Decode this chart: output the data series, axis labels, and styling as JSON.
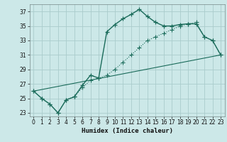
{
  "xlabel": "Humidex (Indice chaleur)",
  "ylabel": "",
  "bg_color": "#cce8e8",
  "grid_color": "#aacccc",
  "line_color": "#1a6b5a",
  "xlim": [
    -0.5,
    23.5
  ],
  "ylim": [
    22.5,
    38.0
  ],
  "xticks": [
    0,
    1,
    2,
    3,
    4,
    5,
    6,
    7,
    8,
    9,
    10,
    11,
    12,
    13,
    14,
    15,
    16,
    17,
    18,
    19,
    20,
    21,
    22,
    23
  ],
  "yticks": [
    23,
    25,
    27,
    29,
    31,
    33,
    35,
    37
  ],
  "line1_x": [
    0,
    1,
    2,
    3,
    4,
    5,
    6,
    7,
    8,
    9,
    10,
    11,
    12,
    13,
    14,
    15,
    16,
    17,
    18,
    19,
    20,
    21,
    22,
    23
  ],
  "line1_y": [
    26.0,
    25.0,
    24.2,
    23.0,
    24.8,
    25.2,
    26.8,
    28.2,
    27.8,
    34.2,
    35.2,
    36.0,
    36.6,
    37.3,
    36.3,
    35.5,
    35.0,
    35.0,
    35.2,
    35.3,
    35.3,
    33.5,
    33.0,
    31.0
  ],
  "line2_x": [
    0,
    1,
    2,
    3,
    4,
    5,
    6,
    7,
    8,
    9,
    10,
    11,
    12,
    13,
    14,
    15,
    16,
    17,
    18,
    19,
    20,
    21,
    22,
    23
  ],
  "line2_y": [
    26.0,
    25.0,
    24.2,
    23.0,
    24.8,
    25.2,
    26.5,
    27.5,
    27.8,
    28.2,
    29.0,
    30.0,
    31.0,
    32.0,
    33.0,
    33.5,
    34.0,
    34.5,
    35.0,
    35.3,
    35.5,
    33.5,
    33.0,
    31.0
  ],
  "line3_x": [
    0,
    23
  ],
  "line3_y": [
    26.0,
    31.0
  ]
}
